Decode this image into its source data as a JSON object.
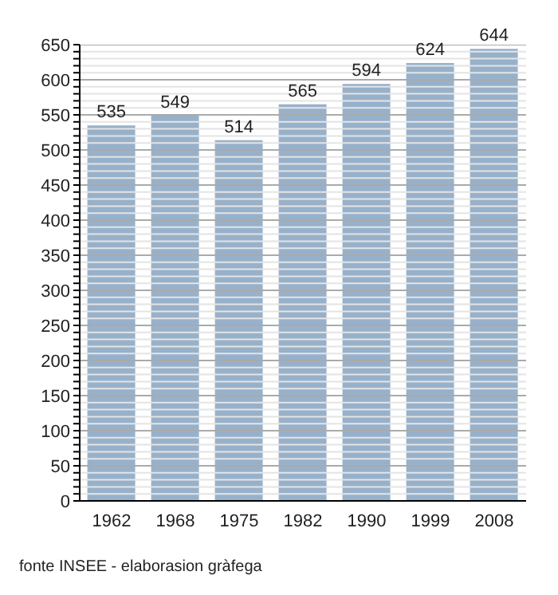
{
  "chart_data": {
    "type": "bar",
    "categories": [
      "1962",
      "1968",
      "1975",
      "1982",
      "1990",
      "1999",
      "2008"
    ],
    "values": [
      535,
      549,
      514,
      565,
      594,
      624,
      644
    ],
    "color": "#98b1cb",
    "data_labels": true,
    "grid": "y",
    "ylim": [
      0,
      650
    ],
    "yticks": [
      0,
      {
        "value": 10,
        "label": null
      },
      {
        "value": 20,
        "label": null
      },
      {
        "value": 30,
        "label": null
      },
      {
        "value": 40,
        "label": null
      },
      50,
      {
        "value": 60,
        "label": null
      },
      {
        "value": 70,
        "label": null
      },
      {
        "value": 80,
        "label": null
      },
      {
        "value": 90,
        "label": null
      },
      100,
      {
        "value": 110,
        "label": null
      },
      {
        "value": 120,
        "label": null
      },
      {
        "value": 130,
        "label": null
      },
      {
        "value": 140,
        "label": null
      },
      150,
      {
        "value": 160,
        "label": null
      },
      {
        "value": 170,
        "label": null
      },
      {
        "value": 180,
        "label": null
      },
      {
        "value": 190,
        "label": null
      },
      200,
      {
        "value": 210,
        "label": null
      },
      {
        "value": 220,
        "label": null
      },
      {
        "value": 230,
        "label": null
      },
      {
        "value": 240,
        "label": null
      },
      250,
      {
        "value": 260,
        "label": null
      },
      {
        "value": 270,
        "label": null
      },
      {
        "value": 280,
        "label": null
      },
      {
        "value": 290,
        "label": null
      },
      300,
      {
        "value": 310,
        "label": null
      },
      {
        "value": 320,
        "label": null
      },
      {
        "value": 330,
        "label": null
      },
      {
        "value": 340,
        "label": null
      },
      350,
      {
        "value": 360,
        "label": null
      },
      {
        "value": 370,
        "label": null
      },
      {
        "value": 380,
        "label": null
      },
      {
        "value": 390,
        "label": null
      },
      400,
      {
        "value": 410,
        "label": null
      },
      {
        "value": 420,
        "label": null
      },
      {
        "value": 430,
        "label": null
      },
      {
        "value": 440,
        "label": null
      },
      450,
      {
        "value": 460,
        "label": null
      },
      {
        "value": 470,
        "label": null
      },
      {
        "value": 480,
        "label": null
      },
      {
        "value": 490,
        "label": null
      },
      500,
      {
        "value": 510,
        "label": null
      },
      {
        "value": 520,
        "label": null
      },
      {
        "value": 530,
        "label": null
      },
      {
        "value": 540,
        "label": null
      },
      550,
      {
        "value": 560,
        "label": null
      },
      {
        "value": 570,
        "label": null
      },
      {
        "value": 580,
        "label": null
      },
      {
        "value": 590,
        "label": null
      },
      600,
      {
        "value": 610,
        "label": null
      },
      {
        "value": 620,
        "label": null
      },
      {
        "value": 630,
        "label": null
      },
      {
        "value": 640,
        "label": null
      },
      650
    ],
    "annotations": [
      "fonte INSEE - elaborasion gràfega"
    ]
  }
}
